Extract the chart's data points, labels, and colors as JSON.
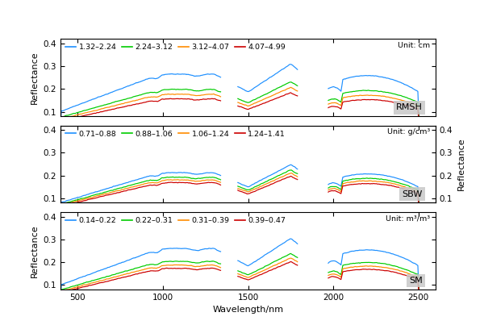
{
  "colors": [
    "#1E90FF",
    "#00CC00",
    "#FF8C00",
    "#CC0000"
  ],
  "panel_labels": [
    "RMSH",
    "SBW",
    "SM"
  ],
  "legend_labels_row0": [
    "1.32–2.24",
    "2.24–3.12",
    "3.12–4.07",
    "4.07–4.99",
    "Unit: cm"
  ],
  "legend_labels_row1": [
    "0.71–0.88",
    "0.88–1.06",
    "1.06–1.24",
    "1.24–1.41",
    "Unit: g/cm³"
  ],
  "legend_labels_row2": [
    "0.14–0.22",
    "0.22–0.31",
    "0.31–0.39",
    "0.39–0.47",
    "Unit: m³/m³"
  ],
  "xlabel": "Wavelength/nm",
  "ylabel": "Reflectance",
  "ylim": [
    0.08,
    0.42
  ],
  "yticks": [
    0.1,
    0.2,
    0.3,
    0.4
  ],
  "xlim": [
    400,
    2600
  ],
  "xticks": [
    500,
    1000,
    1500,
    2000,
    2500
  ],
  "background_color": "#ffffff",
  "panel_label_bgcolor": "#c8c8c8"
}
